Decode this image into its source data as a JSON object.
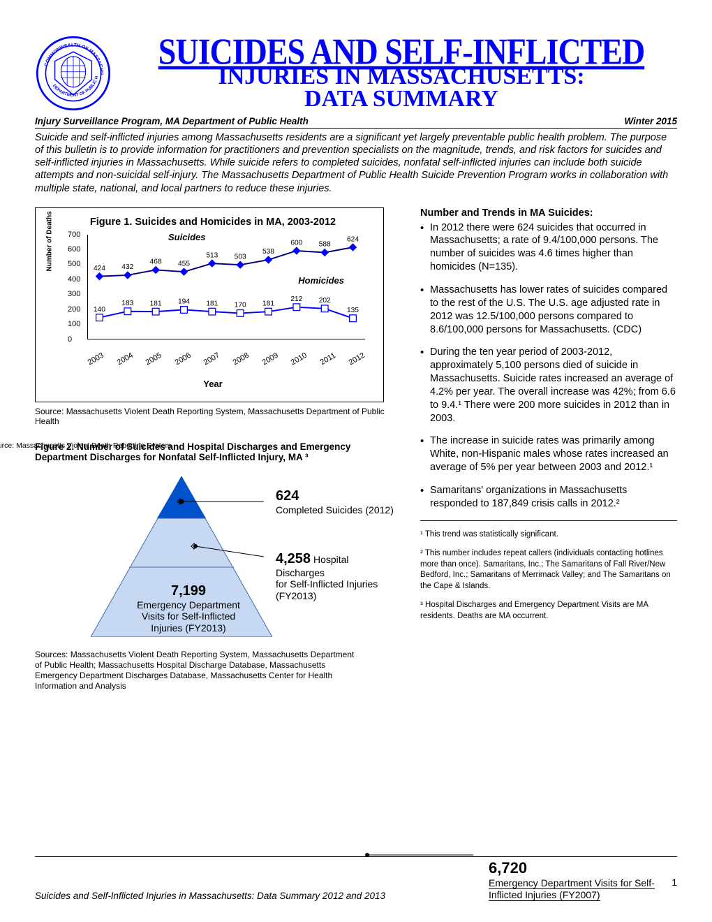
{
  "header": {
    "title_top": "SUICIDES AND SELF-INFLICTED",
    "title_mid": "INJURIES IN MASSACHUSETTS:",
    "title_bot": "DATA SUMMARY",
    "program": "Injury Surveillance Program, MA Department of Public Health",
    "date": "Winter 2015"
  },
  "intro": "Suicide and self-inflicted injuries among Massachusetts residents are a significant yet largely preventable public health problem. The purpose of this bulletin is to provide information for practitioners and prevention specialists on the magnitude, trends, and risk factors for suicides and self-inflicted injuries in Massachusetts. While suicide refers to completed suicides, nonfatal self-inflicted injuries can include both suicide attempts and non-suicidal self-injury. The Massachusetts Department of Public Health Suicide Prevention Program works in collaboration with multiple state, national, and local partners to reduce these injuries.",
  "figure1": {
    "title": "Figure 1. Suicides and Homicides in MA, 2003-2012",
    "ylabel": "Number of Deaths",
    "xlabel": "Year",
    "series_suicides_label": "Suicides",
    "series_homicides_label": "Homicides",
    "years": [
      "2003",
      "2004",
      "2005",
      "2006",
      "2007",
      "2008",
      "2009",
      "2010",
      "2011",
      "2012"
    ],
    "suicides": [
      424,
      432,
      468,
      455,
      513,
      503,
      538,
      600,
      588,
      624
    ],
    "homicides": [
      140,
      183,
      181,
      194,
      181,
      170,
      181,
      212,
      202,
      135
    ],
    "ylim": [
      0,
      700
    ],
    "ytick_step": 100,
    "suicide_color": "#0000ff",
    "homicide_color": "#ffffff",
    "homicide_border": "#0000ff",
    "line_color_suicides": "#000080",
    "line_color_homicides": "#0000ff",
    "marker_suicides": "diamond",
    "marker_homicides": "square",
    "marker_size": 8,
    "background": "#ffffff",
    "source": "Source: Massachusetts Violent Death Reporting System, Massachusetts Department of Public Health"
  },
  "figure2": {
    "overlay_source": "Source: Massachusetts Violent Death Reporting System",
    "label_prefix": "Figure 2. Number of Suicides",
    "label_rest": " and Hospital Discharges and Emergency Department Discharges for Nonfatal Self-Inflicted Injury, MA ³",
    "pyramid": {
      "fill_top": "#0052cc",
      "fill_body": "#c7d8f2",
      "border": "#406aa8"
    },
    "c1_value": "624",
    "c1_label": "Completed Suicides (2012)",
    "c2_value": "4,258",
    "c2_label_a": " Hospital Discharges",
    "c2_label_b": "for Self-Inflicted Injuries (FY2013)",
    "c3_value": "7,199",
    "c3_label": "Emergency Department Visits for Self-Inflicted Injuries (FY2013)",
    "sources": "Sources: Massachusetts Violent Death Reporting System, Massachusetts Department of Public Health; Massachusetts Hospital Discharge Database, Massachusetts Emergency Department Discharges Database, Massachusetts Center for Health Information and Analysis"
  },
  "right": {
    "heading": "Number and Trends in MA Suicides:",
    "b1": "In 2012 there were 624 suicides that occurred in Massachusetts; a rate of 9.4/100,000 persons. The number of suicides was 4.6 times higher than homicides (N=135).",
    "b2": "Massachusetts has lower rates of suicides compared to the rest of the U.S. The U.S. age adjusted rate in 2012 was 12.5/100,000 persons compared to 8.6/100,000 persons for Massachusetts. (CDC)",
    "b3": "During the ten year period of 2003-2012, approximately 5,100 persons died of suicide in Massachusetts. Suicide rates increased an average of 4.2% per year. The overall increase was 42%; from 6.6 to 9.4.¹ There were 200 more suicides in 2012 than in 2003.",
    "b4": "The increase in suicide rates was primarily among White, non-Hispanic males whose rates increased an average of 5% per year between 2003 and 2012.¹",
    "b5": "Samaritans' organizations in Massachusetts responded to 187,849 crisis calls in 2012.²",
    "fn1": "¹ This trend was statistically significant.",
    "fn2": "² This number includes repeat callers (individuals contacting hotlines more than once). Samaritans, Inc.; The Samaritans of Fall River/New Bedford, Inc.; Samaritans of Merrimack Valley; and The Samaritans on the Cape & Islands.",
    "fn3": "³ Hospital Discharges and Emergency Department Visits are MA residents. Deaths are MA occurrent."
  },
  "footer": {
    "left": "Suicides and Self-Inflicted Injuries in Massachusetts: Data Summary 2012 and 2013",
    "right_value": "6,720",
    "right_label": "Emergency Department Visits for Self-Inflicted Injuries (FY2007)",
    "page": "1"
  }
}
